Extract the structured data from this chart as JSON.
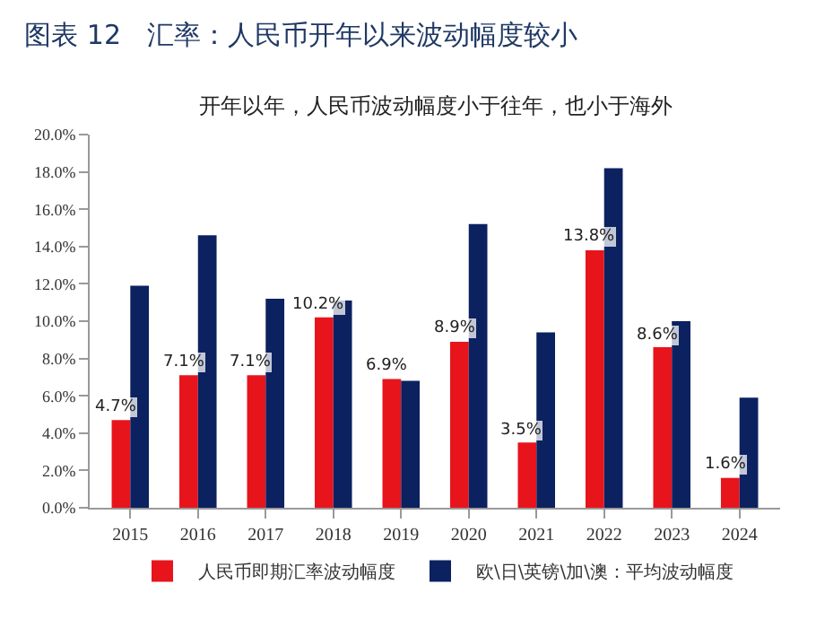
{
  "chart_data": {
    "type": "bar",
    "title": "图表 12   汇率：人民币开年以来波动幅度较小",
    "subtitle": "开年以年，人民币波动幅度小于往年，也小于海外",
    "categories": [
      "2015",
      "2016",
      "2017",
      "2018",
      "2019",
      "2020",
      "2021",
      "2022",
      "2023",
      "2024"
    ],
    "series": [
      {
        "name": "人民币即期汇率波动幅度",
        "color": "#e8141c",
        "values": [
          4.7,
          7.1,
          7.1,
          10.2,
          6.9,
          8.9,
          3.5,
          13.8,
          8.6,
          1.6
        ],
        "value_labels": [
          "4.7%",
          "7.1%",
          "7.1%",
          "10.2%",
          "6.9%",
          "8.9%",
          "3.5%",
          "13.8%",
          "8.6%",
          "1.6%"
        ]
      },
      {
        "name": "欧\\日\\英镑\\加\\澳：平均波动幅度",
        "color": "#0c2160",
        "values": [
          11.9,
          14.6,
          11.2,
          11.1,
          6.8,
          15.2,
          9.4,
          18.2,
          10.0,
          5.9
        ]
      }
    ],
    "ylim": [
      0,
      20
    ],
    "yticks": [
      {
        "value": 0,
        "label": "0.0%"
      },
      {
        "value": 2,
        "label": "2.0%"
      },
      {
        "value": 4,
        "label": "4.0%"
      },
      {
        "value": 6,
        "label": "6.0%"
      },
      {
        "value": 8,
        "label": "8.0%"
      },
      {
        "value": 10,
        "label": "10.0%"
      },
      {
        "value": 12,
        "label": "12.0%"
      },
      {
        "value": 14,
        "label": "14.0%"
      },
      {
        "value": 16,
        "label": "16.0%"
      },
      {
        "value": 18,
        "label": "18.0%"
      },
      {
        "value": 20,
        "label": "20.0%"
      }
    ],
    "legend": "bottom"
  }
}
